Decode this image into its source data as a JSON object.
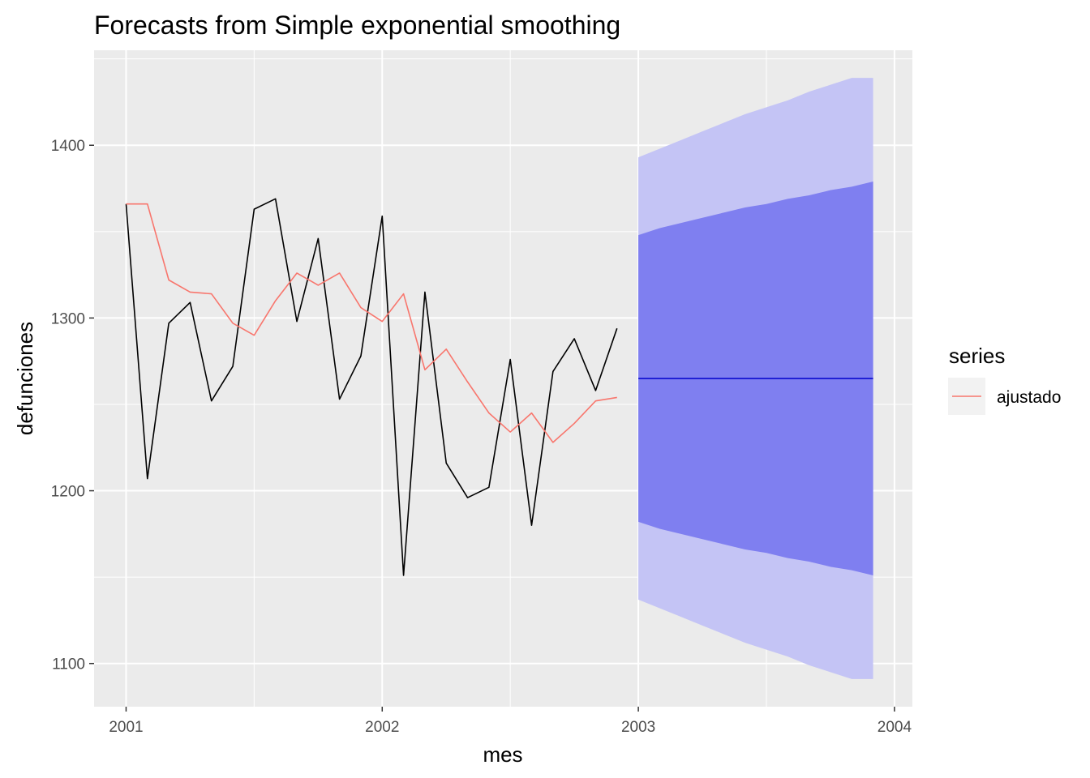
{
  "chart_data": {
    "type": "line",
    "title": "Forecasts from Simple exponential smoothing",
    "xlabel": "mes",
    "ylabel": "defunciones",
    "xlim": [
      2000.875,
      2004.07
    ],
    "ylim": [
      1075,
      1455
    ],
    "x_ticks": [
      2001,
      2002,
      2003,
      2004
    ],
    "x_tick_labels": [
      "2001",
      "2002",
      "2003",
      "2004"
    ],
    "y_ticks": [
      1100,
      1200,
      1300,
      1400
    ],
    "y_tick_labels": [
      "1100",
      "1200",
      "1300",
      "1400"
    ],
    "grid": true,
    "legend": {
      "title": "series",
      "position": "right",
      "entries": [
        {
          "label": "ajustado",
          "color": "#F8766D"
        }
      ]
    },
    "series": [
      {
        "role": "observed",
        "color": "#000000",
        "x": [
          2001.0,
          2001.0833,
          2001.1667,
          2001.25,
          2001.3333,
          2001.4167,
          2001.5,
          2001.5833,
          2001.6667,
          2001.75,
          2001.8333,
          2001.9167,
          2002.0,
          2002.0833,
          2002.1667,
          2002.25,
          2002.3333,
          2002.4167,
          2002.5,
          2002.5833,
          2002.6667,
          2002.75,
          2002.8333,
          2002.9167
        ],
        "values": [
          1366,
          1207,
          1297,
          1309,
          1252,
          1272,
          1363,
          1369,
          1298,
          1346,
          1253,
          1278,
          1359,
          1151,
          1315,
          1216,
          1196,
          1202,
          1276,
          1180,
          1269,
          1288,
          1258,
          1294
        ]
      },
      {
        "name": "ajustado",
        "color": "#F8766D",
        "x": [
          2001.0,
          2001.0833,
          2001.1667,
          2001.25,
          2001.3333,
          2001.4167,
          2001.5,
          2001.5833,
          2001.6667,
          2001.75,
          2001.8333,
          2001.9167,
          2002.0,
          2002.0833,
          2002.1667,
          2002.25,
          2002.3333,
          2002.4167,
          2002.5,
          2002.5833,
          2002.6667,
          2002.75,
          2002.8333,
          2002.9167
        ],
        "values": [
          1366,
          1366,
          1322,
          1315,
          1314,
          1297,
          1290,
          1310,
          1326,
          1319,
          1326,
          1306,
          1298,
          1314,
          1270,
          1282,
          1263,
          1245,
          1234,
          1245,
          1228,
          1239,
          1252,
          1254
        ]
      }
    ],
    "forecast": {
      "color": "#0000CC",
      "x": [
        2003.0,
        2003.0833,
        2003.1667,
        2003.25,
        2003.3333,
        2003.4167,
        2003.5,
        2003.5833,
        2003.6667,
        2003.75,
        2003.8333,
        2003.9167
      ],
      "point": [
        1265,
        1265,
        1265,
        1265,
        1265,
        1265,
        1265,
        1265,
        1265,
        1265,
        1265,
        1265
      ],
      "lo80": [
        1182,
        1178,
        1175,
        1172,
        1169,
        1166,
        1164,
        1161,
        1159,
        1156,
        1154,
        1151
      ],
      "hi80": [
        1348,
        1352,
        1355,
        1358,
        1361,
        1364,
        1366,
        1369,
        1371,
        1374,
        1376,
        1379
      ],
      "lo95": [
        1137,
        1132,
        1127,
        1122,
        1117,
        1112,
        1108,
        1104,
        1099,
        1095,
        1091,
        1091
      ],
      "hi95": [
        1393,
        1398,
        1403,
        1408,
        1413,
        1418,
        1422,
        1426,
        1431,
        1435,
        1439,
        1439
      ],
      "band80_color": "#7F7FF0",
      "band95_color": "#C4C4F5"
    }
  }
}
